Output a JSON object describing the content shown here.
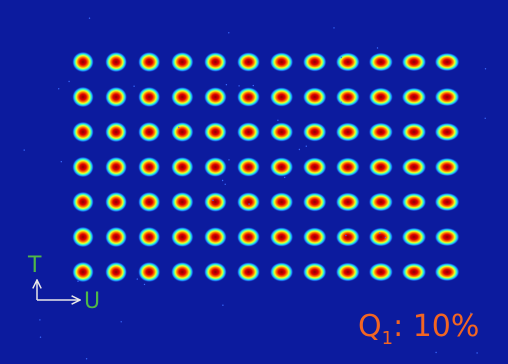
{
  "axes": {
    "vertical_label": "T",
    "horizontal_label": "U"
  },
  "annotation": {
    "symbol": "Q",
    "subscript": "1",
    "suffix": ": 10%"
  }
}
